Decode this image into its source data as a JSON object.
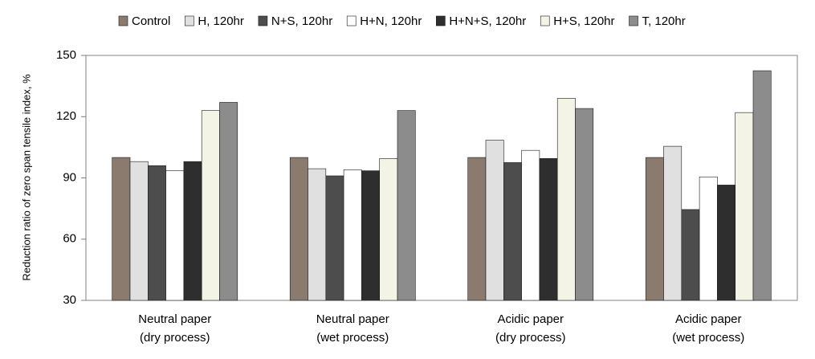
{
  "chart_data": {
    "type": "bar",
    "y_label": "Reduction ratio of zero span tensile index, %",
    "categories": [
      [
        "Neutral paper",
        "(dry process)"
      ],
      [
        "Neutral paper",
        "(wet process)"
      ],
      [
        "Acidic paper",
        "(dry process)"
      ],
      [
        "Acidic paper",
        "(wet process)"
      ]
    ],
    "series": [
      {
        "name": "Control",
        "color": "#8b7b6e",
        "values": [
          100,
          100,
          100,
          100
        ]
      },
      {
        "name": "H, 120hr",
        "color": "#e0e0e0",
        "values": [
          98,
          94.5,
          108.5,
          105.5
        ]
      },
      {
        "name": "N+S, 120hr",
        "color": "#4d4d4d",
        "values": [
          96,
          91,
          97.5,
          74.5
        ]
      },
      {
        "name": "H+N, 120hr",
        "color": "#ffffff",
        "values": [
          93.5,
          94,
          103.5,
          90.5
        ]
      },
      {
        "name": "H+N+S, 120hr",
        "color": "#2e2e2e",
        "values": [
          98,
          93.5,
          99.5,
          86.5
        ]
      },
      {
        "name": "H+S, 120hr",
        "color": "#f3f3e6",
        "values": [
          123,
          99.5,
          129,
          122
        ]
      },
      {
        "name": "T, 120hr",
        "color": "#8c8c8c",
        "values": [
          127,
          123,
          124,
          142.5
        ]
      }
    ],
    "ylim": [
      30,
      150
    ],
    "yticks": [
      30,
      60,
      90,
      120,
      150
    ],
    "legend": "top"
  }
}
